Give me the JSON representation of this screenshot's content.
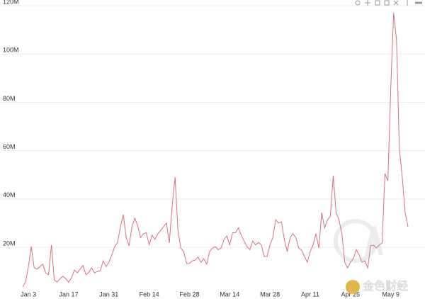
{
  "chart_data": {
    "type": "line",
    "categories": [
      null,
      null,
      "Jan 3",
      null,
      null,
      null,
      null,
      null,
      null,
      null,
      null,
      null,
      null,
      null,
      null,
      null,
      "Jan 17",
      null,
      null,
      null,
      null,
      null,
      null,
      null,
      null,
      null,
      null,
      null,
      null,
      null,
      "Jan 31",
      null,
      null,
      null,
      null,
      null,
      null,
      null,
      null,
      null,
      null,
      null,
      null,
      null,
      "Feb 14",
      null,
      null,
      null,
      null,
      null,
      null,
      null,
      null,
      null,
      null,
      null,
      null,
      null,
      "Feb 28",
      null,
      null,
      null,
      null,
      null,
      null,
      null,
      null,
      null,
      null,
      null,
      null,
      null,
      "Mar 14",
      null,
      null,
      null,
      null,
      null,
      null,
      null,
      null,
      null,
      null,
      null,
      null,
      null,
      "Mar 28",
      null,
      null,
      null,
      null,
      null,
      null,
      null,
      null,
      null,
      null,
      null,
      null,
      null,
      "Apr 11",
      null,
      null,
      null,
      null,
      null,
      null,
      null,
      null,
      null,
      null,
      null,
      null,
      null,
      "Apr 25",
      null,
      null,
      null,
      null,
      null,
      null,
      null,
      null,
      null,
      null,
      null,
      null,
      null,
      "May 9",
      null,
      null,
      null,
      null,
      null,
      null
    ],
    "values": [
      3600000,
      5600000,
      12000000,
      20300000,
      11500000,
      11000000,
      12000000,
      13000000,
      9400000,
      8600000,
      21000000,
      6500000,
      5600000,
      7000000,
      8000000,
      7000000,
      5600000,
      7400000,
      10600000,
      9400000,
      11000000,
      12400000,
      8600000,
      9700000,
      11500000,
      9400000,
      10000000,
      10300000,
      14400000,
      12000000,
      13800000,
      16800000,
      20300000,
      22000000,
      28500000,
      33500000,
      24000000,
      20600000,
      28500000,
      32000000,
      29000000,
      24000000,
      25600000,
      26000000,
      21000000,
      25000000,
      23200000,
      25600000,
      27000000,
      28500000,
      30000000,
      21800000,
      37300000,
      49000000,
      27000000,
      19700000,
      18200000,
      13300000,
      13300000,
      14400000,
      14700000,
      16000000,
      13800000,
      15300000,
      13000000,
      18200000,
      19700000,
      20300000,
      19000000,
      19700000,
      23200000,
      24700000,
      21000000,
      26000000,
      26000000,
      28000000,
      25000000,
      22600000,
      20300000,
      19000000,
      22600000,
      21000000,
      22000000,
      21000000,
      16200000,
      16200000,
      21000000,
      24000000,
      31400000,
      30000000,
      30500000,
      23200000,
      18200000,
      24000000,
      25600000,
      24000000,
      19700000,
      18800000,
      16200000,
      13800000,
      18200000,
      21000000,
      25600000,
      19700000,
      34400000,
      28000000,
      31400000,
      32900000,
      49600000,
      34400000,
      31400000,
      25600000,
      13800000,
      11500000,
      13800000,
      15300000,
      19000000,
      16800000,
      13800000,
      14400000,
      11500000,
      20600000,
      20900000,
      19700000,
      21000000,
      21800000,
      50500000,
      47500000,
      85600000,
      117000000,
      106000000,
      60700000,
      49000000,
      34400000,
      28500000
    ],
    "color": "#dc6e7c",
    "ylim": [
      3000000,
      120000000
    ],
    "yticks": [
      {
        "value": 20000000,
        "label": "20M"
      },
      {
        "value": 40000000,
        "label": "40M"
      },
      {
        "value": 60000000,
        "label": "60M"
      },
      {
        "value": 80000000,
        "label": "80M"
      },
      {
        "value": 100000000,
        "label": "100M"
      },
      {
        "value": 120000000,
        "label": "120M"
      }
    ],
    "grid": true
  },
  "watermark": "金色财经"
}
